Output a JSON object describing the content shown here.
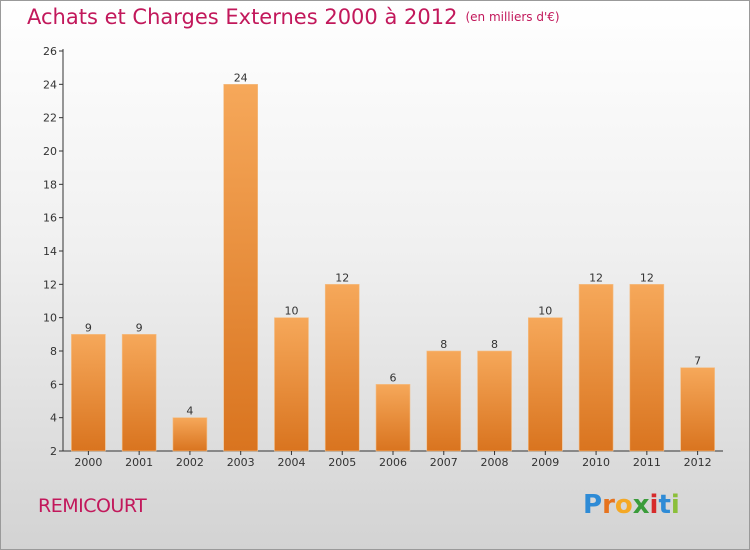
{
  "title": "Achats et Charges Externes 2000 à 2012",
  "unit": "(en milliers d'€)",
  "commune": "REMICOURT",
  "brand": {
    "letters": [
      "P",
      "r",
      "o",
      "x",
      "i",
      "t",
      "i"
    ],
    "colors": [
      "#2e8bd6",
      "#e6731e",
      "#f4a825",
      "#3a9c3a",
      "#d62b2b",
      "#2e8bd6",
      "#8bbf3a"
    ]
  },
  "colors": {
    "title": "#c2185b",
    "bar_top": "#f6a85a",
    "bar_bottom": "#d9741f"
  },
  "chart_data": {
    "type": "bar",
    "categories": [
      "2000",
      "2001",
      "2002",
      "2003",
      "2004",
      "2005",
      "2006",
      "2007",
      "2008",
      "2009",
      "2010",
      "2011",
      "2012"
    ],
    "values": [
      9,
      9,
      4,
      24,
      10,
      12,
      6,
      8,
      8,
      10,
      12,
      12,
      7
    ],
    "ylim": [
      2,
      26
    ],
    "yticks": [
      2,
      4,
      6,
      8,
      10,
      12,
      14,
      16,
      18,
      20,
      22,
      24,
      26
    ],
    "grid": false,
    "legend": "none"
  }
}
